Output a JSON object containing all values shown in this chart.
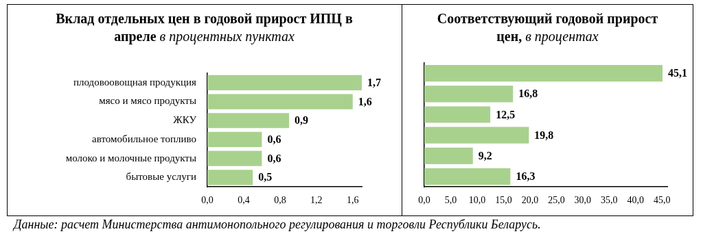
{
  "chart_data": [
    {
      "type": "bar",
      "orientation": "horizontal",
      "title": "Вклад отдельных цен в годовой прирост ИПЦ в апреле",
      "subtitle": "в процентных пунктах",
      "categories": [
        "плодовоовощная продукция",
        "мясо и мясо продукты",
        "ЖКУ",
        "автомобильное топливо",
        "молоко и молочные продукты",
        "бытовые услуги"
      ],
      "values": [
        1.7,
        1.6,
        0.9,
        0.6,
        0.6,
        0.5
      ],
      "value_labels": [
        "1,7",
        "1,6",
        "0,9",
        "0,6",
        "0,6",
        "0,5"
      ],
      "color": "#a9d18e",
      "xlim": [
        0,
        1.7
      ],
      "xticks": [
        {
          "value": 0,
          "label": "0,0"
        },
        {
          "value": 0.4,
          "label": "0,4"
        },
        {
          "value": 0.8,
          "label": "0,8"
        },
        {
          "value": 1.2,
          "label": "1,2"
        },
        {
          "value": 1.6,
          "label": "1,6"
        }
      ],
      "annotations": [
        "Данные: расчет Министерства антимонопольного регулирования и торговли Республики Беларусь."
      ]
    },
    {
      "type": "bar",
      "orientation": "horizontal",
      "title": "Соответствующий годовой прирост цен,",
      "subtitle": "в процентах",
      "categories": [
        null,
        null,
        null,
        null,
        null,
        null
      ],
      "values": [
        45.1,
        16.8,
        12.5,
        19.8,
        9.2,
        16.3
      ],
      "value_labels": [
        "45,1",
        "16,8",
        "12,5",
        "19,8",
        "9,2",
        "16,3"
      ],
      "color": "#a9d18e",
      "xlim": [
        0,
        46
      ],
      "tick_labels": "x",
      "xticks": [
        {
          "value": 0,
          "label": "0,0"
        },
        {
          "value": 5,
          "label": "5,0"
        },
        {
          "value": 10,
          "label": "10,0"
        },
        {
          "value": 15,
          "label": "15,0"
        },
        {
          "value": 20,
          "label": "20,0"
        },
        {
          "value": 25,
          "label": "25,0"
        },
        {
          "value": 30,
          "label": "30,0"
        },
        {
          "value": 35,
          "label": "35,0"
        },
        {
          "value": 40,
          "label": "40,0"
        },
        {
          "value": 45,
          "label": "45,0"
        }
      ]
    }
  ]
}
